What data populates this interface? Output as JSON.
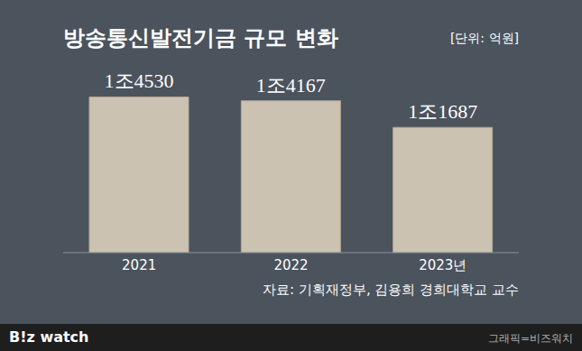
{
  "chart_data": {
    "type": "bar",
    "title": "방송통신발전기금 규모 변화",
    "subtitle": "[단위: 억원]",
    "categories": [
      "2021",
      "2022",
      "2023년"
    ],
    "values": [
      14530,
      14167,
      11687
    ],
    "value_labels": [
      "1조4530",
      "1조4167",
      "1조1687"
    ],
    "color": "#cbc2b1",
    "ylim": [
      0,
      16000
    ],
    "tick_labels": "x",
    "data_labels": true,
    "grid": false,
    "source": "자료: 기획재정부, 김용희 경희대학교 교수",
    "credit": "그래픽=비즈워치",
    "logo": "B!z watch"
  }
}
